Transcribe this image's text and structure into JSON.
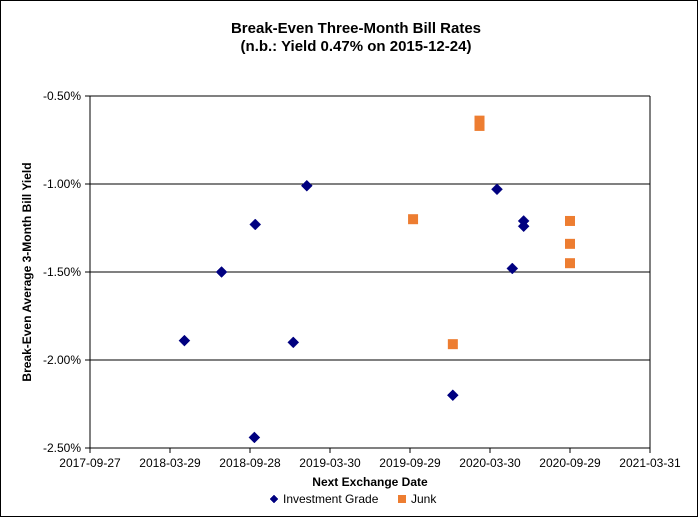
{
  "chart_data": {
    "type": "scatter",
    "title": "Break-Even Three-Month Bill Rates",
    "subtitle": "(n.b.: Yield  0.47% on 2015-12-24)",
    "xlabel": "Next Exchange Date",
    "ylabel": "Break-Even Average 3-Month  Bill Yield",
    "x_type": "date",
    "xlim": [
      "2017-09-27",
      "2021-03-31"
    ],
    "x_tick_labels": [
      "2017-09-27",
      "2018-03-29",
      "2018-09-28",
      "2019-03-30",
      "2019-09-29",
      "2020-03-30",
      "2020-09-29",
      "2021-03-31"
    ],
    "ylim": [
      -2.5,
      -0.5
    ],
    "y_tick_values": [
      -2.5,
      -2.0,
      -1.5,
      -1.0,
      -0.5
    ],
    "y_tick_labels": [
      "-2.50%",
      "-2.00%",
      "-1.50%",
      "-1.00%",
      "-0.50%"
    ],
    "grid": "horizontal",
    "legend_position": "bottom",
    "series": [
      {
        "name": "Investment Grade",
        "marker": "diamond",
        "color": "#000080",
        "points": [
          {
            "x": "2018-05-01",
            "y": -1.89
          },
          {
            "x": "2018-07-25",
            "y": -1.5
          },
          {
            "x": "2018-10-10",
            "y": -1.23
          },
          {
            "x": "2018-10-08",
            "y": -2.44
          },
          {
            "x": "2019-01-05",
            "y": -1.9
          },
          {
            "x": "2019-02-05",
            "y": -1.01
          },
          {
            "x": "2020-01-05",
            "y": -2.2
          },
          {
            "x": "2020-04-15",
            "y": -1.03
          },
          {
            "x": "2020-05-20",
            "y": -1.48
          },
          {
            "x": "2020-06-15",
            "y": -1.21
          },
          {
            "x": "2020-06-15",
            "y": -1.24
          }
        ]
      },
      {
        "name": "Junk",
        "marker": "square",
        "color": "#ED7D31",
        "points": [
          {
            "x": "2019-10-06",
            "y": -1.2
          },
          {
            "x": "2020-01-05",
            "y": -1.91
          },
          {
            "x": "2020-03-06",
            "y": -0.64
          },
          {
            "x": "2020-03-06",
            "y": -0.67
          },
          {
            "x": "2020-09-29",
            "y": -1.21
          },
          {
            "x": "2020-09-29",
            "y": -1.34
          },
          {
            "x": "2020-09-29",
            "y": -1.45
          }
        ]
      }
    ]
  }
}
